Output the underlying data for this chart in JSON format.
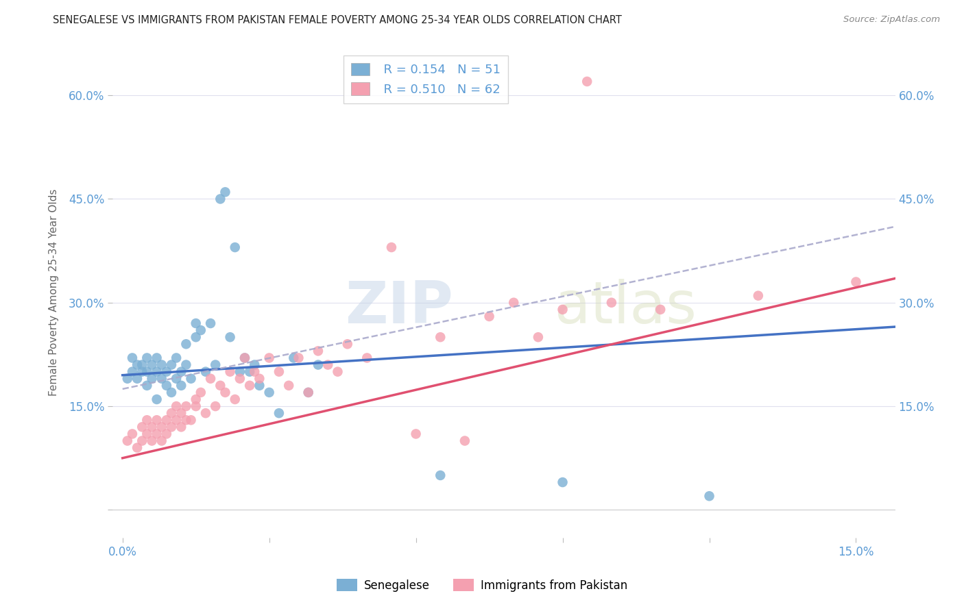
{
  "title": "SENEGALESE VS IMMIGRANTS FROM PAKISTAN FEMALE POVERTY AMONG 25-34 YEAR OLDS CORRELATION CHART",
  "source": "Source: ZipAtlas.com",
  "ylabel": "Female Poverty Among 25-34 Year Olds",
  "xlim": [
    -0.002,
    0.158
  ],
  "ylim": [
    -0.04,
    0.67
  ],
  "legend_R1": "R = 0.154",
  "legend_N1": "N = 51",
  "legend_R2": "R = 0.510",
  "legend_N2": "N = 62",
  "legend_label1": "Senegalese",
  "legend_label2": "Immigrants from Pakistan",
  "color_blue": "#7BAFD4",
  "color_pink": "#F4A0B0",
  "line_color_blue": "#4472C4",
  "line_color_pink": "#E05070",
  "line_color_dash": "#AAAACC",
  "watermark_zip": "ZIP",
  "watermark_atlas": "atlas",
  "title_color": "#222222",
  "axis_label_color": "#5B9BD5",
  "background_color": "#FFFFFF",
  "grid_color": "#E0E0EE",
  "blue_x": [
    0.001,
    0.002,
    0.002,
    0.003,
    0.003,
    0.004,
    0.004,
    0.005,
    0.005,
    0.005,
    0.006,
    0.006,
    0.007,
    0.007,
    0.007,
    0.008,
    0.008,
    0.009,
    0.009,
    0.01,
    0.01,
    0.011,
    0.011,
    0.012,
    0.012,
    0.013,
    0.013,
    0.014,
    0.015,
    0.015,
    0.016,
    0.017,
    0.018,
    0.019,
    0.02,
    0.021,
    0.022,
    0.023,
    0.024,
    0.025,
    0.026,
    0.027,
    0.028,
    0.03,
    0.032,
    0.035,
    0.038,
    0.04,
    0.065,
    0.09,
    0.12
  ],
  "blue_y": [
    0.19,
    0.2,
    0.22,
    0.19,
    0.21,
    0.2,
    0.21,
    0.18,
    0.2,
    0.22,
    0.19,
    0.21,
    0.16,
    0.2,
    0.22,
    0.19,
    0.21,
    0.18,
    0.2,
    0.17,
    0.21,
    0.19,
    0.22,
    0.18,
    0.2,
    0.21,
    0.24,
    0.19,
    0.27,
    0.25,
    0.26,
    0.2,
    0.27,
    0.21,
    0.45,
    0.46,
    0.25,
    0.38,
    0.2,
    0.22,
    0.2,
    0.21,
    0.18,
    0.17,
    0.14,
    0.22,
    0.17,
    0.21,
    0.05,
    0.04,
    0.02
  ],
  "pink_x": [
    0.001,
    0.002,
    0.003,
    0.004,
    0.004,
    0.005,
    0.005,
    0.006,
    0.006,
    0.007,
    0.007,
    0.008,
    0.008,
    0.009,
    0.009,
    0.01,
    0.01,
    0.011,
    0.011,
    0.012,
    0.012,
    0.013,
    0.013,
    0.014,
    0.015,
    0.015,
    0.016,
    0.017,
    0.018,
    0.019,
    0.02,
    0.021,
    0.022,
    0.023,
    0.024,
    0.025,
    0.026,
    0.027,
    0.028,
    0.03,
    0.032,
    0.034,
    0.036,
    0.038,
    0.04,
    0.042,
    0.044,
    0.046,
    0.05,
    0.055,
    0.06,
    0.065,
    0.07,
    0.075,
    0.08,
    0.085,
    0.09,
    0.095,
    0.1,
    0.11,
    0.13,
    0.15
  ],
  "pink_y": [
    0.1,
    0.11,
    0.09,
    0.12,
    0.1,
    0.11,
    0.13,
    0.1,
    0.12,
    0.11,
    0.13,
    0.1,
    0.12,
    0.11,
    0.13,
    0.12,
    0.14,
    0.13,
    0.15,
    0.12,
    0.14,
    0.13,
    0.15,
    0.13,
    0.16,
    0.15,
    0.17,
    0.14,
    0.19,
    0.15,
    0.18,
    0.17,
    0.2,
    0.16,
    0.19,
    0.22,
    0.18,
    0.2,
    0.19,
    0.22,
    0.2,
    0.18,
    0.22,
    0.17,
    0.23,
    0.21,
    0.2,
    0.24,
    0.22,
    0.38,
    0.11,
    0.25,
    0.1,
    0.28,
    0.3,
    0.25,
    0.29,
    0.62,
    0.3,
    0.29,
    0.31,
    0.33
  ],
  "blue_line_x0": 0.0,
  "blue_line_x1": 0.158,
  "blue_line_y0": 0.195,
  "blue_line_y1": 0.265,
  "pink_line_x0": 0.0,
  "pink_line_x1": 0.158,
  "pink_line_y0": 0.075,
  "pink_line_y1": 0.335,
  "dash_line_x0": 0.0,
  "dash_line_x1": 0.158,
  "dash_line_y0": 0.175,
  "dash_line_y1": 0.41
}
